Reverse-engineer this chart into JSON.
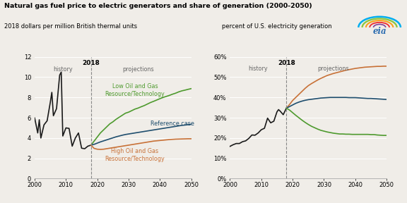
{
  "title": "Natural gas fuel price to electric generators and share of generation (2000-2050)",
  "left_ylabel": "2018 dollars per million British thermal units",
  "right_ylabel": "percent of U.S. electricity generation",
  "color_black": "#1a1a1a",
  "color_green": "#4e9a2e",
  "color_teal": "#1f4e6e",
  "color_orange": "#c87137",
  "bg_color": "#f0ede8",
  "eia_logo_colors": [
    "#00adef",
    "#8dc63f",
    "#f9a11b",
    "#ee2e31",
    "#7e3f98"
  ],
  "left": {
    "xlim": [
      2000,
      2050
    ],
    "ylim": [
      0,
      12
    ],
    "yticks": [
      0,
      2,
      4,
      6,
      8,
      10,
      12
    ],
    "xticks": [
      2000,
      2010,
      2020,
      2030,
      2040,
      2050
    ],
    "history_x": [
      2000,
      2001,
      2001.5,
      2002,
      2003,
      2004,
      2005,
      2005.5,
      2006,
      2007,
      2008,
      2008.5,
      2009,
      2010,
      2011,
      2012,
      2013,
      2014,
      2015,
      2016,
      2017,
      2018
    ],
    "history_y": [
      6.0,
      4.5,
      5.8,
      4.0,
      5.3,
      5.7,
      7.5,
      8.5,
      6.2,
      6.9,
      10.2,
      10.5,
      4.2,
      5.0,
      4.95,
      3.2,
      4.0,
      4.5,
      3.0,
      2.95,
      3.2,
      3.3
    ],
    "low_x": [
      2018,
      2019,
      2020,
      2021,
      2022,
      2023,
      2024,
      2025,
      2026,
      2027,
      2028,
      2029,
      2030,
      2031,
      2032,
      2033,
      2034,
      2035,
      2036,
      2037,
      2038,
      2039,
      2040,
      2041,
      2042,
      2043,
      2044,
      2045,
      2046,
      2047,
      2048,
      2049,
      2050
    ],
    "low_y": [
      3.3,
      3.7,
      4.1,
      4.5,
      4.8,
      5.1,
      5.4,
      5.6,
      5.85,
      6.05,
      6.25,
      6.45,
      6.55,
      6.7,
      6.85,
      6.95,
      7.08,
      7.2,
      7.35,
      7.5,
      7.62,
      7.75,
      7.88,
      8.0,
      8.1,
      8.2,
      8.32,
      8.42,
      8.55,
      8.65,
      8.72,
      8.8,
      8.87
    ],
    "ref_x": [
      2018,
      2019,
      2020,
      2021,
      2022,
      2023,
      2024,
      2025,
      2026,
      2027,
      2028,
      2029,
      2030,
      2031,
      2032,
      2033,
      2034,
      2035,
      2036,
      2037,
      2038,
      2039,
      2040,
      2041,
      2042,
      2043,
      2044,
      2045,
      2046,
      2047,
      2048,
      2049,
      2050
    ],
    "ref_y": [
      3.3,
      3.38,
      3.5,
      3.62,
      3.72,
      3.82,
      3.92,
      4.02,
      4.12,
      4.2,
      4.28,
      4.35,
      4.4,
      4.45,
      4.5,
      4.55,
      4.6,
      4.65,
      4.7,
      4.75,
      4.8,
      4.85,
      4.9,
      4.95,
      5.0,
      5.05,
      5.1,
      5.15,
      5.2,
      5.25,
      5.28,
      5.32,
      5.35
    ],
    "high_x": [
      2018,
      2019,
      2020,
      2021,
      2022,
      2023,
      2024,
      2025,
      2026,
      2027,
      2028,
      2029,
      2030,
      2031,
      2032,
      2033,
      2034,
      2035,
      2036,
      2037,
      2038,
      2039,
      2040,
      2041,
      2042,
      2043,
      2044,
      2045,
      2046,
      2047,
      2048,
      2049,
      2050
    ],
    "high_y": [
      3.3,
      2.98,
      2.9,
      2.88,
      2.9,
      2.95,
      3.0,
      3.05,
      3.1,
      3.15,
      3.2,
      3.25,
      3.3,
      3.35,
      3.4,
      3.45,
      3.5,
      3.55,
      3.6,
      3.65,
      3.7,
      3.73,
      3.76,
      3.79,
      3.82,
      3.85,
      3.87,
      3.89,
      3.9,
      3.91,
      3.92,
      3.93,
      3.93
    ],
    "label_low": "Low Oil and Gas\nResource/Technology",
    "label_ref": "Reference case",
    "label_high": "High Oil and Gas\nResource/Technology"
  },
  "right": {
    "xlim": [
      2000,
      2050
    ],
    "ylim": [
      0,
      0.6
    ],
    "yticks": [
      0.0,
      0.1,
      0.2,
      0.3,
      0.4,
      0.5,
      0.6
    ],
    "xticks": [
      2000,
      2010,
      2020,
      2030,
      2040,
      2050
    ],
    "history_x": [
      2000,
      2001,
      2002,
      2003,
      2004,
      2005,
      2006,
      2007,
      2008,
      2009,
      2010,
      2011,
      2012,
      2013,
      2014,
      2015,
      2015.5,
      2016,
      2017,
      2018
    ],
    "history_y": [
      0.159,
      0.167,
      0.173,
      0.173,
      0.182,
      0.186,
      0.198,
      0.215,
      0.214,
      0.225,
      0.241,
      0.248,
      0.298,
      0.275,
      0.283,
      0.329,
      0.34,
      0.333,
      0.315,
      0.347
    ],
    "low_x": [
      2018,
      2019,
      2020,
      2021,
      2022,
      2023,
      2024,
      2025,
      2026,
      2027,
      2028,
      2029,
      2030,
      2031,
      2032,
      2033,
      2034,
      2035,
      2036,
      2037,
      2038,
      2039,
      2040,
      2041,
      2042,
      2043,
      2044,
      2045,
      2046,
      2047,
      2048,
      2049,
      2050
    ],
    "low_y": [
      0.347,
      0.365,
      0.385,
      0.4,
      0.415,
      0.43,
      0.445,
      0.458,
      0.468,
      0.477,
      0.486,
      0.494,
      0.501,
      0.508,
      0.513,
      0.518,
      0.522,
      0.526,
      0.53,
      0.534,
      0.537,
      0.54,
      0.543,
      0.545,
      0.547,
      0.549,
      0.55,
      0.551,
      0.552,
      0.553,
      0.553,
      0.554,
      0.554
    ],
    "ref_x": [
      2018,
      2019,
      2020,
      2021,
      2022,
      2023,
      2024,
      2025,
      2026,
      2027,
      2028,
      2029,
      2030,
      2031,
      2032,
      2033,
      2034,
      2035,
      2036,
      2037,
      2038,
      2039,
      2040,
      2041,
      2042,
      2043,
      2044,
      2045,
      2046,
      2047,
      2048,
      2049,
      2050
    ],
    "ref_y": [
      0.347,
      0.355,
      0.363,
      0.371,
      0.377,
      0.382,
      0.386,
      0.389,
      0.391,
      0.393,
      0.395,
      0.397,
      0.398,
      0.399,
      0.4,
      0.4,
      0.4,
      0.4,
      0.4,
      0.4,
      0.399,
      0.399,
      0.399,
      0.398,
      0.397,
      0.396,
      0.395,
      0.395,
      0.394,
      0.393,
      0.392,
      0.391,
      0.39
    ],
    "high_x": [
      2018,
      2019,
      2020,
      2021,
      2022,
      2023,
      2024,
      2025,
      2026,
      2027,
      2028,
      2029,
      2030,
      2031,
      2032,
      2033,
      2034,
      2035,
      2036,
      2037,
      2038,
      2039,
      2040,
      2041,
      2042,
      2043,
      2044,
      2045,
      2046,
      2047,
      2048,
      2049,
      2050
    ],
    "high_y": [
      0.347,
      0.338,
      0.325,
      0.312,
      0.3,
      0.288,
      0.277,
      0.267,
      0.258,
      0.251,
      0.244,
      0.238,
      0.234,
      0.23,
      0.227,
      0.224,
      0.222,
      0.22,
      0.22,
      0.219,
      0.219,
      0.218,
      0.218,
      0.218,
      0.218,
      0.218,
      0.218,
      0.217,
      0.217,
      0.215,
      0.214,
      0.213,
      0.213
    ]
  }
}
